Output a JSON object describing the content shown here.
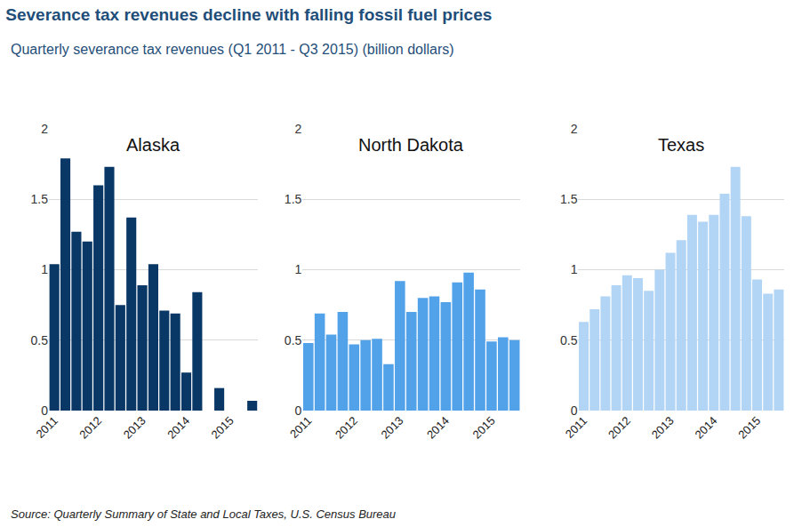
{
  "title": "Severance tax revenues decline with falling fossil fuel prices",
  "subtitle": "Quarterly severance tax revenues (Q1 2011 - Q3 2015) (billion dollars)",
  "source": "Source: Quarterly Summary of State and Local Taxes, U.S. Census Bureau",
  "chart_data": [
    {
      "type": "bar",
      "title": "Alaska",
      "categories": [
        "2011",
        null,
        null,
        null,
        "2012",
        null,
        null,
        null,
        "2013",
        null,
        null,
        null,
        "2014",
        null,
        null,
        null,
        "2015",
        null,
        null
      ],
      "values": [
        1.04,
        1.79,
        1.27,
        1.2,
        1.6,
        1.73,
        0.75,
        1.37,
        0.89,
        1.04,
        0.71,
        0.69,
        0.27,
        0.84,
        0,
        0.16,
        0,
        0,
        0.07
      ],
      "color": "#0a3866",
      "ylim": [
        0,
        2
      ],
      "yticks": [
        0,
        0.5,
        1,
        1.5,
        2
      ],
      "grid": true
    },
    {
      "type": "bar",
      "title": "North Dakota",
      "categories": [
        "2011",
        null,
        null,
        null,
        "2012",
        null,
        null,
        null,
        "2013",
        null,
        null,
        null,
        "2014",
        null,
        null,
        null,
        "2015",
        null,
        null
      ],
      "values": [
        0.48,
        0.69,
        0.54,
        0.7,
        0.47,
        0.5,
        0.51,
        0.33,
        0.92,
        0.7,
        0.8,
        0.81,
        0.77,
        0.91,
        0.98,
        0.86,
        0.49,
        0.52,
        0.5
      ],
      "color": "#52a2ea",
      "ylim": [
        0,
        2
      ],
      "yticks": [
        0,
        0.5,
        1,
        1.5,
        2
      ],
      "grid": true
    },
    {
      "type": "bar",
      "title": "Texas",
      "categories": [
        "2011",
        null,
        null,
        null,
        "2012",
        null,
        null,
        null,
        "2013",
        null,
        null,
        null,
        "2014",
        null,
        null,
        null,
        "2015",
        null,
        null
      ],
      "values": [
        0.63,
        0.72,
        0.81,
        0.89,
        0.96,
        0.94,
        0.85,
        1.0,
        1.12,
        1.21,
        1.39,
        1.34,
        1.39,
        1.54,
        1.73,
        1.38,
        0.93,
        0.83,
        0.86
      ],
      "color": "#b2d5f5",
      "ylim": [
        0,
        2
      ],
      "yticks": [
        0,
        0.5,
        1,
        1.5,
        2
      ],
      "grid": true
    }
  ]
}
